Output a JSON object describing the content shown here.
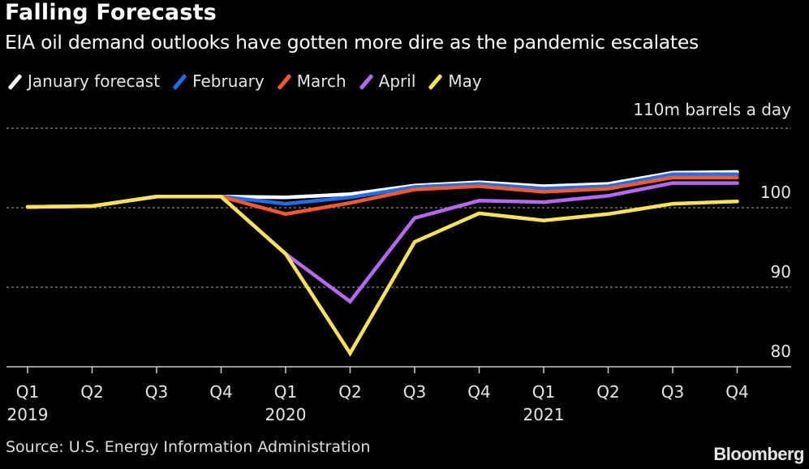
{
  "header": {
    "title": "Falling Forecasts",
    "subtitle": "EIA oil demand outlooks have gotten more dire as the pandemic escalates"
  },
  "footer": {
    "source": "Source: U.S. Energy Information Administration",
    "brand": "Bloomberg"
  },
  "chart_data": {
    "type": "line",
    "title": "Falling Forecasts",
    "subtitle": "EIA oil demand outlooks have gotten more dire as the pandemic escalates",
    "ylabel": "110m barrels a day",
    "xlabel": "",
    "ylim": [
      80,
      110
    ],
    "yticks": [
      80,
      90,
      100,
      110
    ],
    "ytick_labels": [
      "80",
      "90",
      "100",
      "110m barrels a day"
    ],
    "grid": "horizontal-dotted",
    "legend_position": "top-left",
    "x": [
      "Q1 2019",
      "Q2 2019",
      "Q3 2019",
      "Q4 2019",
      "Q1 2020",
      "Q2 2020",
      "Q3 2020",
      "Q4 2020",
      "Q1 2021",
      "Q2 2021",
      "Q3 2021",
      "Q4 2021"
    ],
    "x_tick_labels": [
      "Q1",
      "Q2",
      "Q3",
      "Q4",
      "Q1",
      "Q2",
      "Q3",
      "Q4",
      "Q1",
      "Q2",
      "Q3",
      "Q4"
    ],
    "x_year_labels": [
      {
        "index": 0,
        "label": "2019"
      },
      {
        "index": 4,
        "label": "2020"
      },
      {
        "index": 8,
        "label": "2021"
      }
    ],
    "series": [
      {
        "name": "January forecast",
        "color": "#ffffff",
        "values": [
          100.1,
          100.2,
          101.4,
          101.4,
          101.3,
          101.7,
          102.8,
          103.2,
          102.7,
          103.0,
          104.4,
          104.5
        ]
      },
      {
        "name": "February",
        "color": "#1f6ef0",
        "values": [
          100.1,
          100.2,
          101.4,
          101.4,
          100.5,
          101.3,
          102.6,
          103.0,
          102.4,
          102.7,
          104.2,
          104.2
        ]
      },
      {
        "name": "March",
        "color": "#f55a2c",
        "values": [
          100.1,
          100.2,
          101.4,
          101.4,
          99.2,
          100.6,
          102.3,
          102.7,
          102.0,
          102.4,
          103.8,
          103.8
        ]
      },
      {
        "name": "April",
        "color": "#b469f0",
        "values": [
          100.1,
          100.2,
          101.4,
          101.4,
          94.2,
          88.2,
          98.7,
          100.9,
          100.7,
          101.5,
          103.1,
          103.1
        ]
      },
      {
        "name": "May",
        "color": "#f7e35a",
        "values": [
          100.1,
          100.2,
          101.4,
          101.4,
          94.2,
          81.7,
          95.7,
          99.3,
          98.4,
          99.2,
          100.5,
          100.8
        ]
      }
    ]
  }
}
